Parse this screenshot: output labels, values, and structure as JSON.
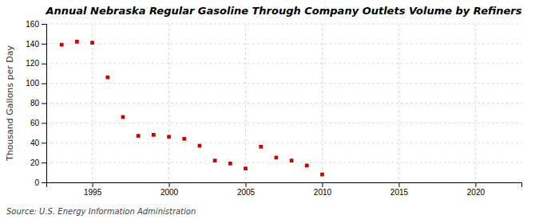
{
  "chart_data": {
    "type": "scatter",
    "title": "Annual Nebraska Regular Gasoline Through Company Outlets Volume by Refiners",
    "ylabel": "Thousand Gallons per Day",
    "source": "Source: U.S. Energy Information Administration",
    "x": [
      1993,
      1994,
      1995,
      1996,
      1997,
      1998,
      1999,
      2000,
      2001,
      2002,
      2003,
      2004,
      2005,
      2006,
      2007,
      2008,
      2009,
      2010
    ],
    "values": [
      139,
      142,
      141,
      106,
      66,
      47,
      48,
      46,
      44,
      37,
      22,
      19,
      14,
      36,
      25,
      22,
      17,
      8
    ],
    "color": "#cc0000",
    "marker": "square",
    "xlim": [
      1992,
      2023
    ],
    "ylim": [
      0,
      160
    ],
    "xticks": [
      1995,
      2000,
      2005,
      2010,
      2015,
      2020
    ],
    "yticks": [
      0,
      20,
      40,
      60,
      80,
      100,
      120,
      140,
      160
    ],
    "grid": true
  }
}
